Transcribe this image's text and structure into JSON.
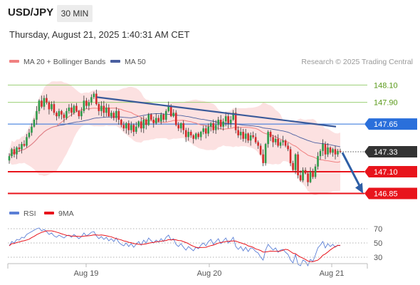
{
  "header": {
    "symbol": "USD/JPY",
    "timeframe": "30 MIN",
    "datetime": "Thursday, August 21, 2025 1:40:31 AM CET"
  },
  "legend": {
    "ma20": "MA 20 + Bollinger Bands",
    "ma50": "MA 50",
    "credit": "Research © 2025 Trading Central",
    "rsi": "RSI",
    "rsi9ma": "9MA"
  },
  "colors": {
    "ma20": "#f08080",
    "bands": "#fbdcdc",
    "ma50": "#4a5fa0",
    "trend": "#3a5a9a",
    "support": "#e8141c",
    "resistance_blue": "#2a6fdb",
    "green": "#8cc860",
    "bull": "#2e9b4a",
    "bear": "#d42a2a",
    "rsi": "#5b7fd6",
    "rsi_ma": "#e8141c",
    "arrow": "#2e5fa6"
  },
  "chart_data": [
    {
      "type": "candlestick",
      "y_range": [
        146.78,
        148.3
      ],
      "x_labels": [
        "Aug 19",
        "Aug 20",
        "Aug 21"
      ],
      "levels": [
        {
          "value": 148.1,
          "label": "148.10",
          "style": "green"
        },
        {
          "value": 147.9,
          "label": "147.90",
          "style": "green"
        },
        {
          "value": 147.65,
          "label": "147.65",
          "style": "blue"
        },
        {
          "value": 147.33,
          "label": "147.33",
          "style": "last"
        },
        {
          "value": 147.1,
          "label": "147.10",
          "style": "red"
        },
        {
          "value": 146.85,
          "label": "146.85",
          "style": "red"
        }
      ],
      "last_price": 147.33,
      "trendline": {
        "from": 147.96,
        "to": 147.62
      },
      "projection": {
        "from": 147.32,
        "to": 146.85
      },
      "closes": [
        147.28,
        147.36,
        147.3,
        147.38,
        147.36,
        147.42,
        147.4,
        147.5,
        147.55,
        147.62,
        147.7,
        147.8,
        147.92,
        147.85,
        147.95,
        147.9,
        147.82,
        147.88,
        147.78,
        147.74,
        147.8,
        147.76,
        147.72,
        147.8,
        147.84,
        147.78,
        147.86,
        147.8,
        147.74,
        147.8,
        147.92,
        147.86,
        147.9,
        147.96,
        148.0,
        147.88,
        147.8,
        147.86,
        147.78,
        147.84,
        147.74,
        147.78,
        147.72,
        147.8,
        147.7,
        147.64,
        147.6,
        147.66,
        147.58,
        147.64,
        147.56,
        147.62,
        147.68,
        147.6,
        147.7,
        147.64,
        147.76,
        147.7,
        147.66,
        147.72,
        147.68,
        147.76,
        147.7,
        147.8,
        147.86,
        147.74,
        147.78,
        147.64,
        147.6,
        147.66,
        147.58,
        147.5,
        147.56,
        147.52,
        147.48,
        147.54,
        147.5,
        147.56,
        147.6,
        147.54,
        147.62,
        147.66,
        147.58,
        147.64,
        147.7,
        147.62,
        147.68,
        147.74,
        147.66,
        147.7,
        147.78,
        147.58,
        147.52,
        147.56,
        147.48,
        147.54,
        147.46,
        147.52,
        147.5,
        147.44,
        147.4,
        147.3,
        147.2,
        147.42,
        147.56,
        147.5,
        147.44,
        147.48,
        147.4,
        147.44,
        147.46,
        147.4,
        147.36,
        147.2,
        147.12,
        147.3,
        147.06,
        147.0,
        147.12,
        147.08,
        146.98,
        147.1,
        147.04,
        147.16,
        147.28,
        147.34,
        147.42,
        147.3,
        147.38,
        147.32,
        147.36,
        147.3,
        147.34,
        147.33
      ],
      "rsi": {
        "y_range": [
          25,
          75
        ],
        "ticks": [
          70,
          50,
          30
        ],
        "values": [
          46,
          52,
          50,
          55,
          54,
          58,
          57,
          62,
          64,
          66,
          68,
          70,
          71,
          67,
          69,
          66,
          62,
          64,
          60,
          58,
          61,
          59,
          57,
          60,
          61,
          58,
          62,
          59,
          56,
          59,
          64,
          60,
          62,
          65,
          66,
          60,
          56,
          59,
          55,
          58,
          53,
          56,
          52,
          57,
          51,
          48,
          46,
          50,
          45,
          49,
          44,
          48,
          52,
          47,
          54,
          50,
          57,
          53,
          50,
          54,
          51,
          56,
          52,
          58,
          61,
          54,
          56,
          48,
          45,
          49,
          44,
          40,
          45,
          42,
          39,
          44,
          42,
          47,
          50,
          46,
          52,
          55,
          48,
          52,
          56,
          49,
          53,
          57,
          50,
          53,
          58,
          45,
          41,
          45,
          39,
          44,
          38,
          43,
          42,
          38,
          36,
          30,
          26,
          40,
          48,
          44,
          40,
          43,
          37,
          40,
          41,
          37,
          34,
          26,
          22,
          34,
          20,
          18,
          26,
          24,
          18,
          27,
          24,
          33,
          43,
          47,
          52,
          43,
          49,
          45,
          48,
          44,
          47,
          46
        ]
      }
    }
  ]
}
